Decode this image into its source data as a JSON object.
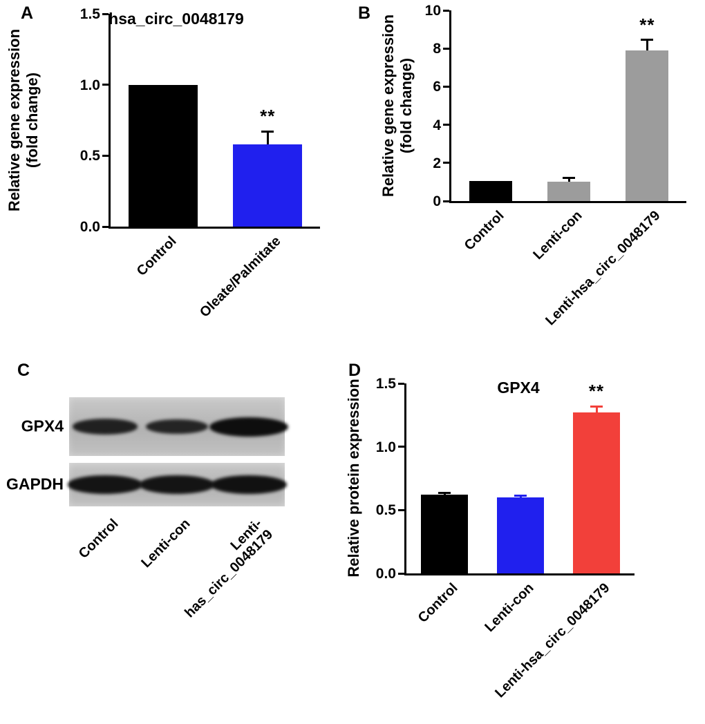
{
  "panels": {
    "a": {
      "label": "A"
    },
    "b": {
      "label": "B"
    },
    "c": {
      "label": "C"
    },
    "d": {
      "label": "D"
    }
  },
  "chart_data": [
    {
      "panel": "A",
      "type": "bar",
      "title": "hsa_circ_0048179",
      "ylabel": "Relative gene expression\n(fold change)",
      "categories": [
        "Control",
        "Oleate/Palmitate"
      ],
      "values": [
        1.0,
        0.58
      ],
      "errors": [
        0,
        0.09
      ],
      "bar_colors": [
        "#000000",
        "#2020ee"
      ],
      "error_colors": [
        "#000000",
        "#000000"
      ],
      "ylim": [
        0,
        1.5
      ],
      "ytick_labels": [
        "0.0",
        "0.5",
        "1.0",
        "1.5"
      ],
      "bar_frac": 0.66,
      "significance": [
        {
          "bar_index": 1,
          "text": "**"
        }
      ]
    },
    {
      "panel": "B",
      "type": "bar",
      "title": "",
      "ylabel": "Relative gene expression\n(fold change)",
      "categories": [
        "Control",
        "Lenti-con",
        "Lenti-hsa_circ_0048179"
      ],
      "values": [
        1.05,
        1.0,
        7.9
      ],
      "errors": [
        0,
        0.2,
        0.55
      ],
      "bar_colors": [
        "#000000",
        "#9c9c9c",
        "#9c9c9c"
      ],
      "error_colors": [
        "#000000",
        "#000000",
        "#000000"
      ],
      "ylim": [
        0,
        10
      ],
      "ytick_labels": [
        "0",
        "2",
        "4",
        "6",
        "8",
        "10"
      ],
      "bar_frac": 0.55,
      "significance": [
        {
          "bar_index": 2,
          "text": "**"
        }
      ]
    },
    {
      "panel": "D",
      "type": "bar",
      "title": "GPX4",
      "ylabel": "Relative protein expression",
      "categories": [
        "Control",
        "Lenti-con",
        "Lenti-hsa_circ_0048179"
      ],
      "values": [
        0.62,
        0.6,
        1.27
      ],
      "errors": [
        0.015,
        0.015,
        0.05
      ],
      "bar_colors": [
        "#000000",
        "#2020ee",
        "#f2403a"
      ],
      "error_colors": [
        "#000000",
        "#2020ee",
        "#f2403a"
      ],
      "ylim": [
        0,
        1.5
      ],
      "ytick_labels": [
        "0.0",
        "0.5",
        "1.0",
        "1.5"
      ],
      "bar_frac": 0.62,
      "significance": [
        {
          "bar_index": 2,
          "text": "**"
        }
      ]
    }
  ],
  "blot": {
    "panel": "C",
    "rows": [
      {
        "label": "GPX4",
        "bands": [
          0.55,
          0.45,
          1.0
        ]
      },
      {
        "label": "GAPDH",
        "bands": [
          0.85,
          0.85,
          0.9
        ]
      }
    ],
    "lanes": [
      "Control",
      "Lenti-con",
      "Lenti-\nhas_circ_0048179"
    ]
  }
}
